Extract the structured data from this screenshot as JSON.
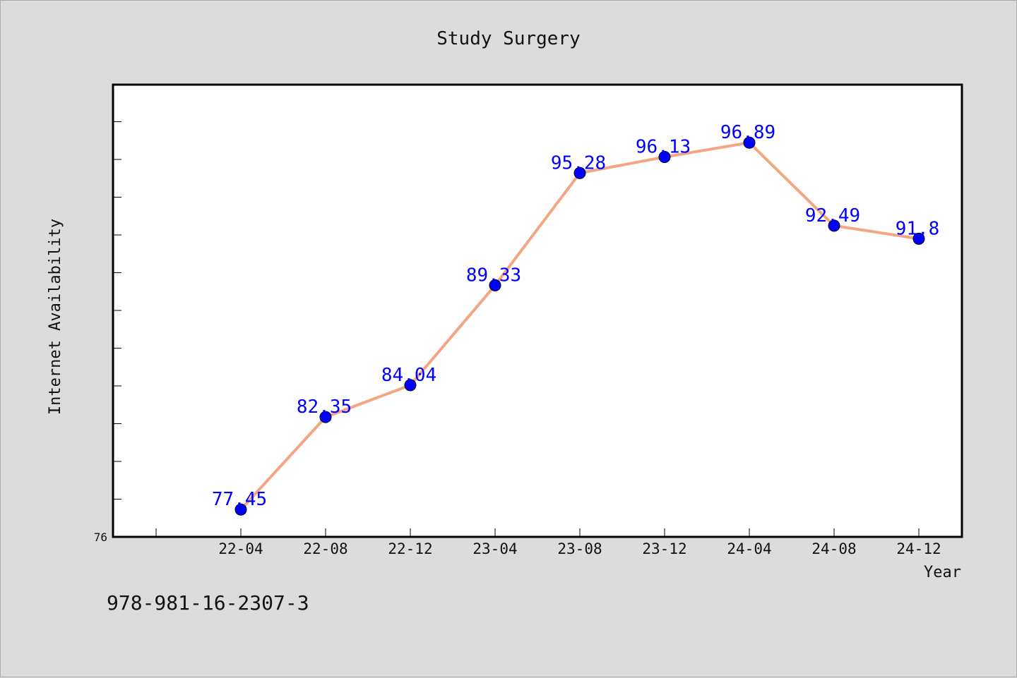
{
  "chart_data": {
    "type": "line",
    "title": "Study Surgery",
    "xlabel": "Year",
    "ylabel": "Internet Availability",
    "categories": [
      "22-04",
      "22-08",
      "22-12",
      "23-04",
      "23-08",
      "23-12",
      "24-04",
      "24-08",
      "24-12"
    ],
    "series": [
      {
        "values": [
          77.45,
          82.35,
          84.04,
          89.33,
          95.28,
          96.13,
          96.89,
          92.49,
          91.8
        ],
        "labels": [
          "77.45",
          "82.35",
          "84.04",
          "89.33",
          "95.28",
          "96.13",
          "96.89",
          "92.49",
          "91.8"
        ],
        "line_color": "#f4a582",
        "marker_color": "#0000ff"
      }
    ],
    "ylim": [
      76,
      100
    ],
    "y_min_label": "76",
    "grid": false,
    "legend": "none"
  },
  "footer_text": "978-981-16-2307-3"
}
